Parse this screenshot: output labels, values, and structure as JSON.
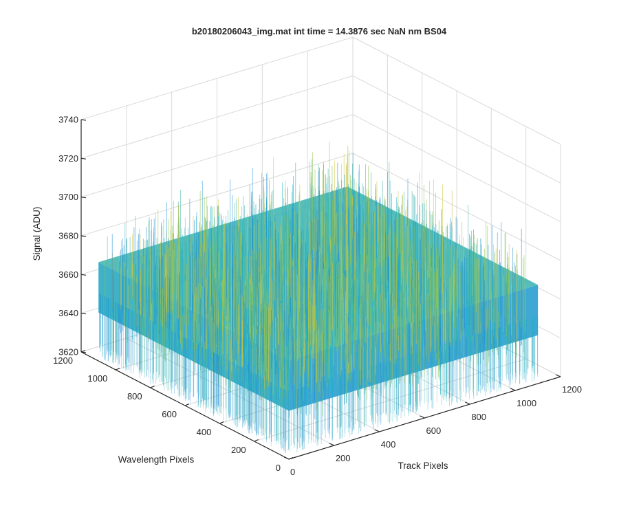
{
  "chart_data": {
    "type": "surface",
    "title": "b20180206043_img.mat int time = 14.3876 sec  NaN nm BS04",
    "xlabel": "Track Pixels",
    "ylabel": "Wavelength Pixels",
    "zlabel": "Signal (ADU)",
    "xlim": [
      0,
      1200
    ],
    "ylim": [
      0,
      1200
    ],
    "zlim": [
      3620,
      3740
    ],
    "xticks": [
      "0",
      "200",
      "400",
      "600",
      "800",
      "1000",
      "1200"
    ],
    "yticks": [
      "0",
      "200",
      "400",
      "600",
      "800",
      "1000",
      "1200"
    ],
    "zticks": [
      "3620",
      "3640",
      "3660",
      "3680",
      "3700",
      "3720",
      "3740"
    ],
    "grid": true,
    "colormap": "parula",
    "colors": {
      "cyan": "#26b5c9",
      "blue": "#1f8dd6",
      "teal": "#3fb6a8",
      "green": "#8cc34f",
      "yellow": "#cfc43a"
    },
    "surface_summary": {
      "x_extent": [
        0,
        1100
      ],
      "y_extent": [
        0,
        1100
      ],
      "mean_signal": 3659,
      "noise_band": [
        3630,
        3705
      ]
    }
  }
}
